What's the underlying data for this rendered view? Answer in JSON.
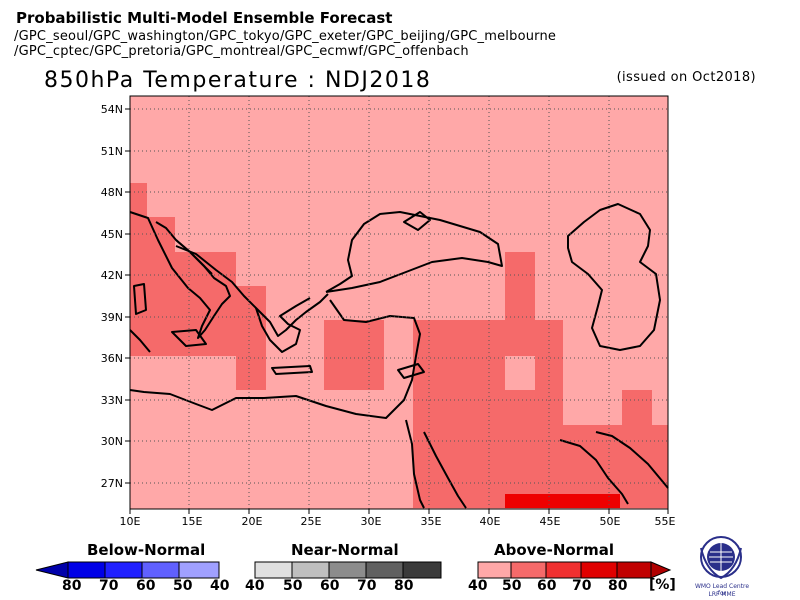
{
  "header": {
    "title": "Probabilistic Multi-Model Ensemble Forecast",
    "line1": "/GPC_seoul/GPC_washington/GPC_tokyo/GPC_exeter/GPC_beijing/GPC_melbourne",
    "line2": "/GPC_cptec/GPC_pretoria/GPC_montreal/GPC_ecmwf/GPC_offenbach"
  },
  "map": {
    "title": "850hPa Temperature : NDJ2018",
    "issued": "(issued on Oct2018)",
    "lon_labels": [
      "10E",
      "15E",
      "20E",
      "25E",
      "30E",
      "35E",
      "40E",
      "45E",
      "50E",
      "55E"
    ],
    "lat_labels": [
      "54N",
      "51N",
      "48N",
      "45N",
      "42N",
      "39N",
      "36N",
      "33N",
      "30N",
      "27N"
    ],
    "categories": {
      "base": "#ffa8a8",
      "c50": "#f56a6a",
      "c70": "#ee0000"
    }
  },
  "legend": {
    "below": {
      "title": "Below-Normal",
      "labels": [
        "80",
        "70",
        "60",
        "50",
        "40"
      ],
      "colors": [
        "#0000aa",
        "#0000e6",
        "#2020ff",
        "#6060ff",
        "#a0a0ff"
      ]
    },
    "near": {
      "title": "Near-Normal",
      "labels": [
        "40",
        "50",
        "60",
        "70",
        "80"
      ],
      "colors": [
        "#e0e0e0",
        "#bfbfbf",
        "#8c8c8c",
        "#606060",
        "#3a3a3a"
      ]
    },
    "above": {
      "title": "Above-Normal",
      "labels": [
        "40",
        "50",
        "60",
        "70",
        "80"
      ],
      "colors": [
        "#ffa8a8",
        "#f56a6a",
        "#f03030",
        "#e00000",
        "#c00000"
      ]
    },
    "unit": "[%]"
  },
  "logo": {
    "line1": "WMO Lead Centre for",
    "line2": "LRF MME"
  }
}
